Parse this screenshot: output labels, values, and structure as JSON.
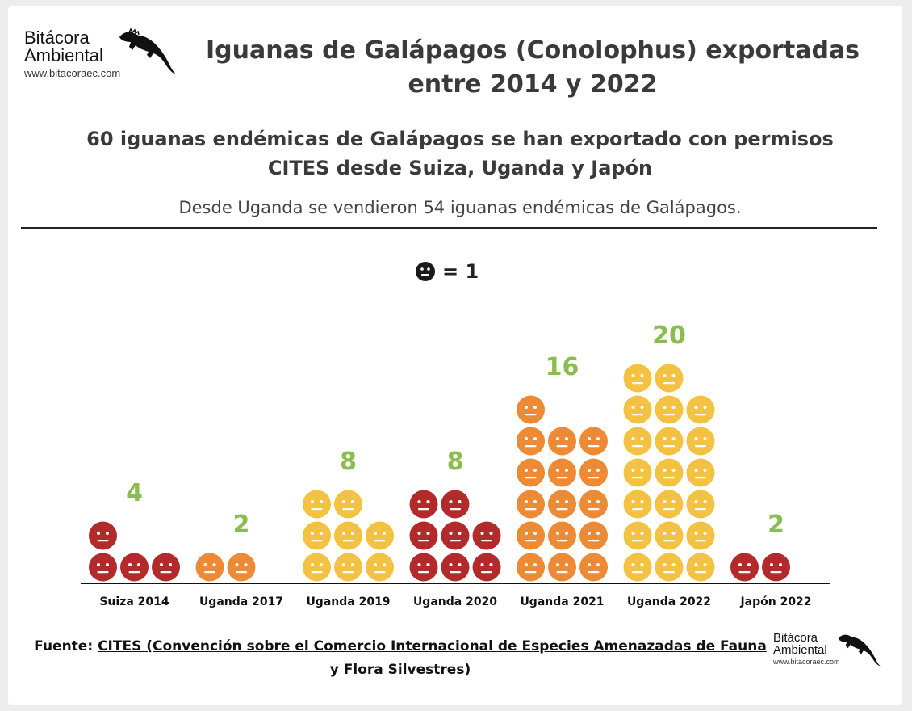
{
  "branding": {
    "name_line1": "Bitácora",
    "name_line2": "Ambiental",
    "url": "www.bitacoraec.com"
  },
  "header": {
    "title_line1": "Iguanas de Galápagos (Conolophus) exportadas",
    "title_line2": "entre 2014 y 2022",
    "subtitle_line1": "60 iguanas endémicas de Galápagos se han exportado con permisos",
    "subtitle_line2": "CITES desde Suiza, Uganda y Japón",
    "note": "Desde Uganda se vendieron 54 iguanas endémicas de Galápagos."
  },
  "legend": {
    "icon": "neutral-face-icon",
    "text": "= 1"
  },
  "chart_data": {
    "type": "bar",
    "unit_icon": "neutral-face-icon",
    "unit_value": 1,
    "categories": [
      "Suiza 2014",
      "Uganda 2017",
      "Uganda 2019",
      "Uganda 2020",
      "Uganda 2021",
      "Uganda 2022",
      "Japón 2022"
    ],
    "values": [
      4,
      2,
      8,
      8,
      16,
      20,
      2
    ],
    "colors": [
      "#b22a2a",
      "#ec8a35",
      "#f4c243",
      "#b22a2a",
      "#ec8a35",
      "#f4c243",
      "#b22a2a"
    ],
    "data_labels": [
      "4",
      "2",
      "8",
      "8",
      "16",
      "20",
      "2"
    ],
    "label_color": "#8bbd4e",
    "grid": false,
    "legend": "top-center"
  },
  "source": {
    "prefix": "Fuente:",
    "link_text": "CITES (Convención sobre el Comercio Internacional de Especies Amenazadas de Fauna y Flora Silvestres)",
    "suffix": ""
  }
}
